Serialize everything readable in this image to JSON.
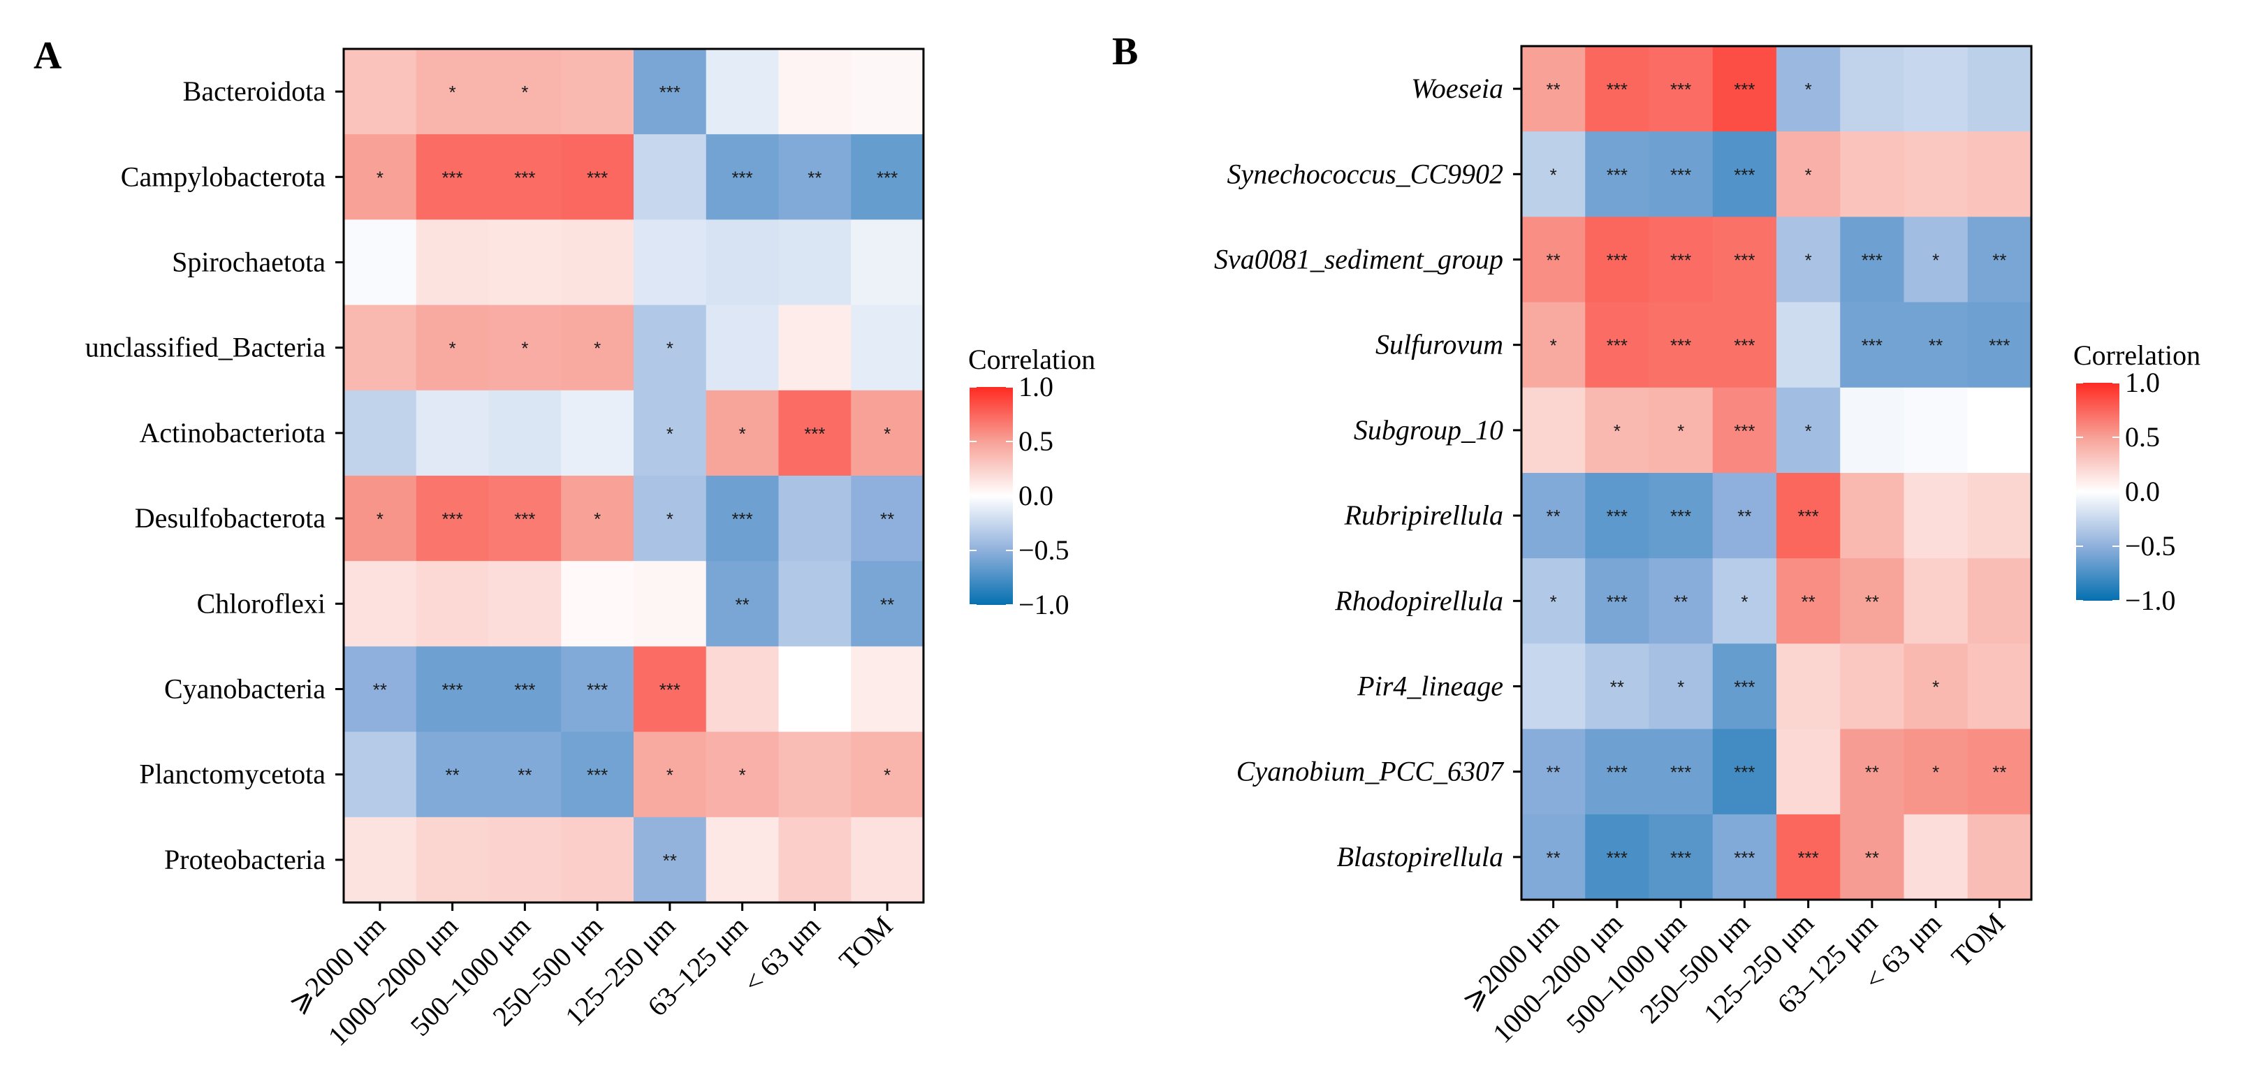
{
  "chart_data": [
    {
      "panel": "A",
      "type": "heatmap",
      "legend_title": "Correlation",
      "colorbar_ticks": [
        "1.0",
        "0.5",
        "0.0",
        "−0.5",
        "−1.0"
      ],
      "colorbar_range": [
        -1,
        1
      ],
      "columns": [
        "⩾2000 μm",
        "1000–2000 μm",
        "500–1000 μm",
        "250–500 μm",
        "125–250 μm",
        "63–125 μm",
        "< 63 μm",
        "TOM"
      ],
      "rows": [
        "Bacteroidota",
        "Campylobacterota",
        "Spirochaetota",
        "unclassified_Bacteria",
        "Actinobacteriota",
        "Desulfobacterota",
        "Chloroflexi",
        "Cyanobacteria",
        "Planctomycetota",
        "Proteobacteria"
      ],
      "italic_rows": false,
      "values": [
        [
          0.32,
          0.4,
          0.4,
          0.38,
          -0.58,
          -0.12,
          0.06,
          0.04
        ],
        [
          0.5,
          0.72,
          0.72,
          0.74,
          -0.25,
          -0.6,
          -0.55,
          -0.65
        ],
        [
          -0.03,
          0.15,
          0.14,
          0.15,
          -0.15,
          -0.18,
          -0.16,
          -0.08
        ],
        [
          0.38,
          0.45,
          0.44,
          0.45,
          -0.35,
          -0.15,
          0.1,
          -0.12
        ],
        [
          -0.28,
          -0.14,
          -0.16,
          -0.1,
          -0.35,
          0.48,
          0.72,
          0.5
        ],
        [
          0.55,
          0.68,
          0.66,
          0.5,
          -0.38,
          -0.62,
          -0.38,
          -0.5
        ],
        [
          0.16,
          0.2,
          0.18,
          0.03,
          0.05,
          -0.58,
          -0.35,
          -0.58
        ],
        [
          -0.5,
          -0.62,
          -0.62,
          -0.55,
          0.72,
          0.2,
          0.0,
          0.1
        ],
        [
          -0.33,
          -0.55,
          -0.55,
          -0.6,
          0.45,
          0.42,
          0.35,
          0.4
        ],
        [
          0.15,
          0.22,
          0.24,
          0.26,
          -0.48,
          0.12,
          0.26,
          0.16
        ]
      ],
      "significance": [
        [
          "",
          "*",
          "*",
          "",
          "***",
          "",
          "",
          ""
        ],
        [
          "*",
          "***",
          "***",
          "***",
          "",
          "***",
          "**",
          "***"
        ],
        [
          "",
          "",
          "",
          "",
          "",
          "",
          "",
          ""
        ],
        [
          "",
          "*",
          "*",
          "*",
          "*",
          "",
          "",
          ""
        ],
        [
          "",
          "",
          "",
          "",
          "*",
          "*",
          "***",
          "*"
        ],
        [
          "*",
          "***",
          "***",
          "*",
          "*",
          "***",
          "",
          "**"
        ],
        [
          "",
          "",
          "",
          "",
          "",
          "**",
          "",
          "**"
        ],
        [
          "**",
          "***",
          "***",
          "***",
          "***",
          "",
          "",
          ""
        ],
        [
          "",
          "**",
          "**",
          "***",
          "*",
          "*",
          "",
          "*"
        ],
        [
          "",
          "",
          "",
          "",
          "**",
          "",
          "",
          ""
        ]
      ]
    },
    {
      "panel": "B",
      "type": "heatmap",
      "legend_title": "Correlation",
      "colorbar_ticks": [
        "1.0",
        "0.5",
        "0.0",
        "−0.5",
        "−1.0"
      ],
      "colorbar_range": [
        -1,
        1
      ],
      "columns": [
        "⩾2000 μm",
        "1000–2000 μm",
        "500–1000 μm",
        "250–500 μm",
        "125–250 μm",
        "63–125 μm",
        "< 63 μm",
        "TOM"
      ],
      "rows": [
        "Woeseia",
        "Synechococcus_CC9902",
        "Sva0081_sediment_group",
        "Sulfurovum",
        "Subgroup_10",
        "Rubripirellula",
        "Rhodopirellula",
        "Pir4_lineage",
        "Cyanobium_PCC_6307",
        "Blastopirellula"
      ],
      "italic_rows": true,
      "values": [
        [
          0.5,
          0.75,
          0.72,
          0.85,
          -0.45,
          -0.28,
          -0.25,
          -0.3
        ],
        [
          -0.3,
          -0.6,
          -0.62,
          -0.72,
          0.42,
          0.32,
          0.3,
          0.32
        ],
        [
          0.58,
          0.75,
          0.72,
          0.7,
          -0.38,
          -0.62,
          -0.42,
          -0.58
        ],
        [
          0.45,
          0.72,
          0.7,
          0.7,
          -0.22,
          -0.6,
          -0.6,
          -0.62
        ],
        [
          0.22,
          0.38,
          0.4,
          0.6,
          -0.42,
          -0.05,
          -0.03,
          0.0
        ],
        [
          -0.55,
          -0.68,
          -0.65,
          -0.5,
          0.75,
          0.38,
          0.18,
          0.22
        ],
        [
          -0.35,
          -0.58,
          -0.52,
          -0.32,
          0.58,
          0.48,
          0.25,
          0.35
        ],
        [
          -0.25,
          -0.35,
          -0.4,
          -0.65,
          0.22,
          0.3,
          0.38,
          0.32
        ],
        [
          -0.52,
          -0.62,
          -0.62,
          -0.78,
          0.2,
          0.52,
          0.55,
          0.58
        ],
        [
          -0.55,
          -0.75,
          -0.7,
          -0.55,
          0.75,
          0.52,
          0.18,
          0.35
        ]
      ],
      "significance": [
        [
          "**",
          "***",
          "***",
          "***",
          "*",
          "",
          "",
          ""
        ],
        [
          "*",
          "***",
          "***",
          "***",
          "*",
          "",
          "",
          ""
        ],
        [
          "**",
          "***",
          "***",
          "***",
          "*",
          "***",
          "*",
          "**"
        ],
        [
          "*",
          "***",
          "***",
          "***",
          "",
          "***",
          "**",
          "***"
        ],
        [
          "",
          "*",
          "*",
          "***",
          "*",
          "",
          "",
          ""
        ],
        [
          "**",
          "***",
          "***",
          "**",
          "***",
          "",
          "",
          ""
        ],
        [
          "*",
          "***",
          "**",
          "*",
          "**",
          "**",
          "",
          ""
        ],
        [
          "",
          "**",
          "*",
          "***",
          "",
          "",
          "*",
          ""
        ],
        [
          "**",
          "***",
          "***",
          "***",
          "",
          "**",
          "*",
          "**"
        ],
        [
          "**",
          "***",
          "***",
          "***",
          "***",
          "**",
          "",
          ""
        ]
      ]
    }
  ]
}
